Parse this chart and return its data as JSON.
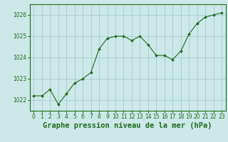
{
  "x": [
    0,
    1,
    2,
    3,
    4,
    5,
    6,
    7,
    8,
    9,
    10,
    11,
    12,
    13,
    14,
    15,
    16,
    17,
    18,
    19,
    20,
    21,
    22,
    23
  ],
  "y": [
    1022.2,
    1022.2,
    1022.5,
    1021.8,
    1022.3,
    1022.8,
    1023.0,
    1023.3,
    1024.4,
    1024.9,
    1025.0,
    1025.0,
    1024.8,
    1025.0,
    1024.6,
    1024.1,
    1024.1,
    1023.9,
    1024.3,
    1025.1,
    1025.6,
    1025.9,
    1026.0,
    1026.1
  ],
  "line_color": "#1e6b1e",
  "marker_color": "#1e6b1e",
  "bg_color": "#cce8e8",
  "grid_color": "#a0c8c8",
  "title": "Graphe pression niveau de la mer (hPa)",
  "title_color": "#1e6b1e",
  "ylim": [
    1021.5,
    1026.5
  ],
  "yticks": [
    1022,
    1023,
    1024,
    1025,
    1026
  ],
  "xlim": [
    -0.5,
    23.5
  ],
  "xticks": [
    0,
    1,
    2,
    3,
    4,
    5,
    6,
    7,
    8,
    9,
    10,
    11,
    12,
    13,
    14,
    15,
    16,
    17,
    18,
    19,
    20,
    21,
    22,
    23
  ],
  "tick_fontsize": 5.5,
  "title_fontsize": 7.5
}
